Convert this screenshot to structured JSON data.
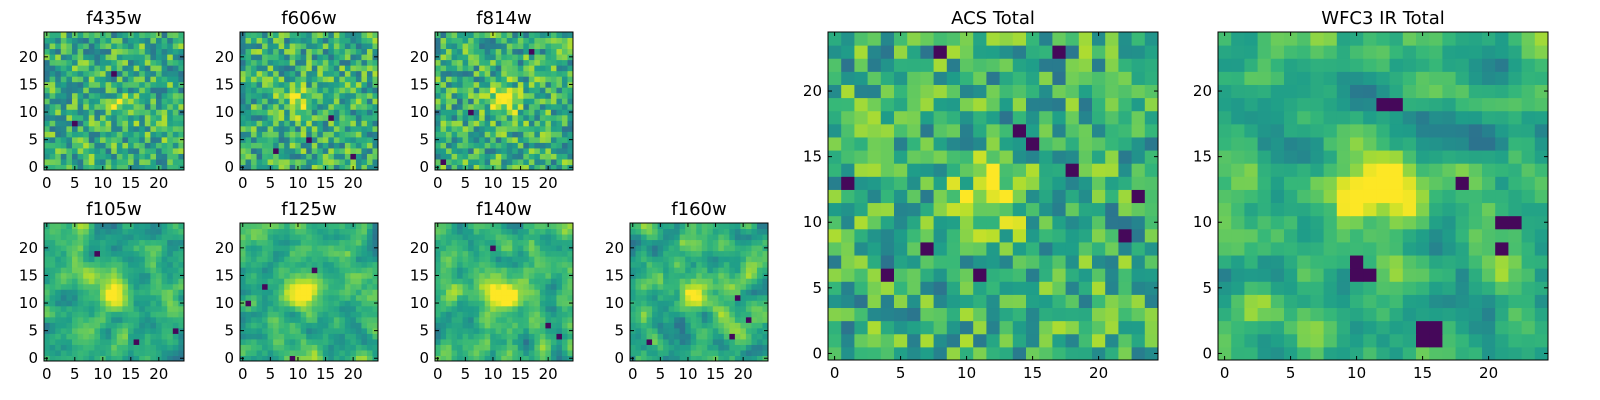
{
  "chart_data": {
    "type": "heatmap",
    "colormap": "viridis",
    "grid_size": 25,
    "value_range": [
      0,
      1
    ],
    "xlim": [
      -0.5,
      24.5
    ],
    "ylim": [
      -0.5,
      24.5
    ],
    "origin": "lower",
    "grid": false,
    "legend": "none",
    "panels": [
      {
        "title": "f435w",
        "xticks": [
          0,
          5,
          10,
          15,
          20
        ],
        "yticks": [
          0,
          5,
          10,
          15,
          20
        ],
        "seed": 11,
        "peak": [
          13,
          11
        ],
        "smooth": 0,
        "peak_strength": 0.15,
        "dark_cells": [
          [
            5,
            8
          ],
          [
            12,
            17
          ]
        ]
      },
      {
        "title": "f606w",
        "xticks": [
          0,
          5,
          10,
          15,
          20
        ],
        "yticks": [
          0,
          5,
          10,
          15,
          20
        ],
        "seed": 23,
        "peak": [
          10,
          12
        ],
        "smooth": 0,
        "peak_strength": 0.25,
        "dark_cells": [
          [
            6,
            3
          ],
          [
            12,
            5
          ],
          [
            20,
            2
          ],
          [
            16,
            9
          ]
        ]
      },
      {
        "title": "f814w",
        "xticks": [
          0,
          5,
          10,
          15,
          20
        ],
        "yticks": [
          0,
          5,
          10,
          15,
          20
        ],
        "seed": 37,
        "peak": [
          12,
          12
        ],
        "smooth": 0,
        "peak_strength": 0.35,
        "dark_cells": [
          [
            1,
            1
          ],
          [
            6,
            10
          ],
          [
            17,
            21
          ]
        ]
      },
      {
        "title": "f105w",
        "xticks": [
          0,
          5,
          10,
          15,
          20
        ],
        "yticks": [
          0,
          5,
          10,
          15,
          20
        ],
        "seed": 41,
        "peak": [
          12,
          12
        ],
        "smooth": 1,
        "peak_strength": 0.45,
        "dark_cells": [
          [
            23,
            5
          ],
          [
            9,
            19
          ],
          [
            16,
            3
          ]
        ]
      },
      {
        "title": "f125w",
        "xticks": [
          0,
          5,
          10,
          15,
          20
        ],
        "yticks": [
          0,
          5,
          10,
          15,
          20
        ],
        "seed": 53,
        "peak": [
          11,
          12
        ],
        "smooth": 1,
        "peak_strength": 0.4,
        "dark_cells": [
          [
            1,
            10
          ],
          [
            13,
            16
          ],
          [
            9,
            0
          ],
          [
            4,
            13
          ]
        ]
      },
      {
        "title": "f140w",
        "xticks": [
          0,
          5,
          10,
          15,
          20
        ],
        "yticks": [
          0,
          5,
          10,
          15,
          20
        ],
        "seed": 67,
        "peak": [
          12,
          12
        ],
        "smooth": 1,
        "peak_strength": 0.45,
        "dark_cells": [
          [
            20,
            6
          ],
          [
            22,
            4
          ],
          [
            10,
            20
          ]
        ]
      },
      {
        "title": "f160w",
        "xticks": [
          0,
          5,
          10,
          15,
          20
        ],
        "yticks": [
          0,
          5,
          10,
          15,
          20
        ],
        "seed": 79,
        "peak": [
          12,
          12
        ],
        "smooth": 1,
        "peak_strength": 0.4,
        "dark_cells": [
          [
            19,
            11
          ],
          [
            21,
            7
          ],
          [
            18,
            4
          ],
          [
            3,
            3
          ]
        ]
      },
      {
        "title": "ACS Total",
        "xticks": [
          0,
          5,
          10,
          15,
          20
        ],
        "yticks": [
          0,
          5,
          10,
          15,
          20
        ],
        "seed": 83,
        "peak": [
          12,
          12
        ],
        "smooth": 0,
        "peak_strength": 0.3,
        "dark_cells": [
          [
            15,
            16
          ],
          [
            14,
            17
          ],
          [
            7,
            8
          ],
          [
            17,
            23
          ],
          [
            1,
            13
          ],
          [
            22,
            9
          ],
          [
            23,
            12
          ],
          [
            8,
            23
          ],
          [
            18,
            14
          ],
          [
            4,
            6
          ],
          [
            11,
            6
          ]
        ]
      },
      {
        "title": "WFC3 IR Total",
        "xticks": [
          0,
          5,
          10,
          15,
          20
        ],
        "yticks": [
          0,
          5,
          10,
          15,
          20
        ],
        "seed": 97,
        "peak": [
          12,
          13
        ],
        "smooth": 1,
        "peak_strength": 0.55,
        "dark_cells": [
          [
            10,
            7
          ],
          [
            10,
            6
          ],
          [
            11,
            6
          ],
          [
            15,
            2
          ],
          [
            16,
            2
          ],
          [
            15,
            1
          ],
          [
            16,
            1
          ],
          [
            21,
            10
          ],
          [
            22,
            10
          ],
          [
            18,
            13
          ],
          [
            21,
            8
          ],
          [
            12,
            19
          ],
          [
            13,
            19
          ]
        ]
      }
    ]
  }
}
